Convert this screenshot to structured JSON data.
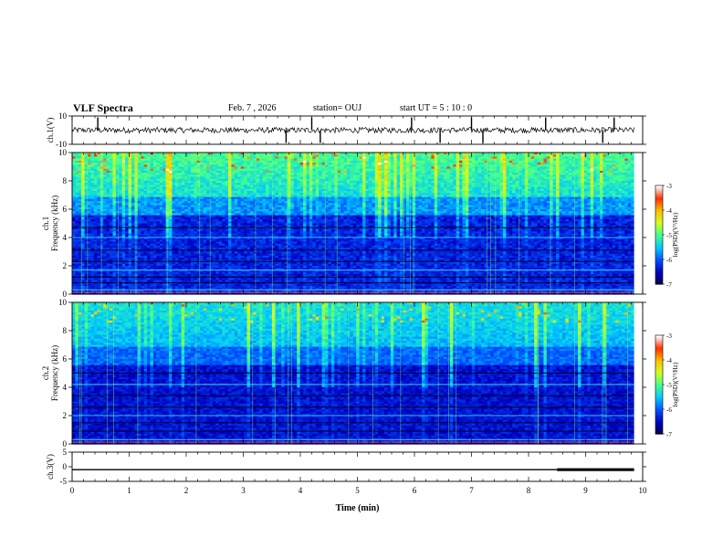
{
  "header": {
    "title": "VLF Spectra",
    "date": "Feb. 7 , 2026",
    "station": "station= OUJ",
    "start": "start  UT =   5 : 10 : 0"
  },
  "colors": {
    "waveform": "#000000",
    "colormap": [
      "#000040",
      "#0000c0",
      "#0050ff",
      "#00c8ff",
      "#40ff90",
      "#d0ff20",
      "#ffc000",
      "#ff3000",
      "#ffffff"
    ]
  },
  "chart_data": [
    {
      "type": "line",
      "panel": "ch1-waveform",
      "ylabel": "ch.1(V)",
      "ylim": [
        -10,
        10
      ],
      "yticks": [
        "10",
        "-10"
      ],
      "baseline": 0,
      "noise_amplitude": 2,
      "spikes": [
        0.45,
        3.75,
        4.2,
        4.35,
        5.95,
        6.45,
        7.0,
        7.2,
        8.3,
        9.3,
        9.5
      ]
    },
    {
      "type": "heatmap",
      "panel": "ch1-spectrogram",
      "ylabel": "ch.1\nFrequency (kHz)",
      "ylim": [
        0,
        10
      ],
      "yticks": [
        "0",
        "2",
        "4",
        "6",
        "8",
        "10"
      ],
      "colorbar": {
        "label": "log(PSD)(V²/Hz)",
        "range": [
          -7,
          -3
        ],
        "ticks": [
          "-3",
          "-4",
          "-5",
          "-6",
          "-7"
        ]
      },
      "bands_khz": [
        0.3,
        0.8,
        1.2,
        1.7,
        2.3,
        3.1,
        4.0,
        4.7
      ],
      "intensity_scale": 1.0
    },
    {
      "type": "heatmap",
      "panel": "ch2-spectrogram",
      "ylabel": "ch.2\nFrequency (kHz)",
      "ylim": [
        0,
        10
      ],
      "yticks": [
        "0",
        "2",
        "4",
        "6",
        "8",
        "10"
      ],
      "colorbar": {
        "label": "log(PSD)(V²/Hz)",
        "range": [
          -7,
          -3
        ],
        "ticks": [
          "-3",
          "-4",
          "-5",
          "-6",
          "-7"
        ]
      },
      "bands_khz": [
        0.3,
        0.9,
        1.5,
        2.0,
        2.6,
        3.4,
        4.2,
        5.0
      ],
      "intensity_scale": 0.85
    },
    {
      "type": "line",
      "panel": "ch3-waveform",
      "ylabel": "ch.3(V)",
      "ylim": [
        -5,
        5
      ],
      "yticks": [
        "5",
        "0",
        "-5"
      ],
      "level": -1,
      "thick_from_min": 8.5
    }
  ],
  "time_axis": {
    "label": "Time (min)",
    "xlim": [
      0,
      10
    ],
    "ticks": [
      "0",
      "1",
      "2",
      "3",
      "4",
      "5",
      "6",
      "7",
      "8",
      "9",
      "10"
    ],
    "data_end_min": 9.85
  }
}
